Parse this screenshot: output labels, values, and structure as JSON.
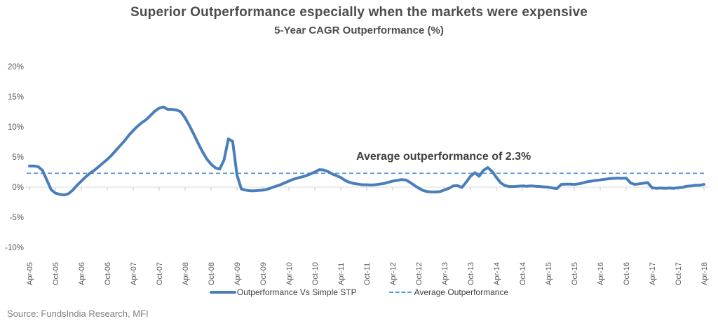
{
  "page": {
    "title": "Superior Outperformance especially when the markets were expensive",
    "subtitle": "5-Year CAGR Outperformance (%)",
    "annotation": "Average outperformance of 2.3%",
    "source": "Source: FundsIndia Research, MFI"
  },
  "legend": {
    "series_label": "Outperformance Vs Simple STP",
    "average_label": "Average Outperformance"
  },
  "colors": {
    "series_line": "#4a7ebb",
    "average_line": "#5b9bd5",
    "axis_text": "#595959",
    "title_text": "#4d4d4d",
    "annotation_text": "#3f3f3f",
    "source_text": "#7f7f7f",
    "gridline": "#d9d9d9",
    "tick": "#c9c9c9"
  },
  "chart_data": {
    "type": "line",
    "title": "Superior Outperformance especially when the markets were expensive",
    "subtitle": "5-Year CAGR Outperformance (%)",
    "xlabel": "",
    "ylabel": "",
    "ylim": [
      -10,
      20
    ],
    "grid": false,
    "legend_position": "bottom",
    "y_ticks": [
      "20%",
      "15%",
      "10%",
      "5%",
      "0%",
      "-5%",
      "-10%"
    ],
    "y_tick_values": [
      20,
      15,
      10,
      5,
      0,
      -5,
      -10
    ],
    "x_tick_labels": [
      "Apr-05",
      "Oct-05",
      "Apr-06",
      "Oct-06",
      "Apr-07",
      "Oct-07",
      "Apr-08",
      "Oct-08",
      "Apr-09",
      "Oct-09",
      "Apr-10",
      "Oct-10",
      "Apr-11",
      "Oct-11",
      "Apr-12",
      "Oct-12",
      "Apr-13",
      "Oct-13",
      "Apr-14",
      "Oct-14",
      "Apr-15",
      "Oct-15",
      "Apr-16",
      "Oct-16",
      "Apr-17",
      "Oct-17",
      "Apr-18"
    ],
    "average_value": 2.3,
    "annotation": "Average outperformance of 2.3%",
    "series": [
      {
        "name": "Outperformance Vs Simple STP",
        "start": "Apr-05",
        "interval": "monthly",
        "unit": "%",
        "values": [
          3.5,
          3.5,
          3.4,
          2.8,
          1.2,
          -0.4,
          -1.0,
          -1.2,
          -1.3,
          -1.1,
          -0.5,
          0.3,
          1.0,
          1.7,
          2.3,
          2.8,
          3.4,
          4.0,
          4.6,
          5.3,
          6.1,
          6.9,
          7.7,
          8.6,
          9.4,
          10.1,
          10.7,
          11.2,
          11.9,
          12.6,
          13.1,
          13.3,
          12.9,
          12.9,
          12.8,
          12.5,
          11.5,
          10.2,
          8.8,
          7.3,
          5.9,
          4.7,
          3.8,
          3.2,
          3.0,
          4.5,
          8.0,
          7.6,
          2.0,
          -0.3,
          -0.5,
          -0.6,
          -0.6,
          -0.55,
          -0.5,
          -0.35,
          -0.1,
          0.15,
          0.4,
          0.7,
          1.0,
          1.3,
          1.5,
          1.7,
          1.9,
          2.2,
          2.5,
          2.9,
          2.85,
          2.6,
          2.2,
          1.9,
          1.6,
          1.1,
          0.8,
          0.6,
          0.5,
          0.4,
          0.4,
          0.35,
          0.4,
          0.5,
          0.6,
          0.8,
          1.0,
          1.1,
          1.25,
          1.2,
          0.8,
          0.3,
          -0.15,
          -0.55,
          -0.75,
          -0.8,
          -0.8,
          -0.75,
          -0.45,
          -0.2,
          0.2,
          0.25,
          -0.05,
          0.8,
          1.8,
          2.4,
          1.8,
          2.8,
          3.25,
          2.6,
          1.6,
          0.7,
          0.25,
          0.1,
          0.1,
          0.15,
          0.2,
          0.15,
          0.2,
          0.15,
          0.1,
          0.05,
          0.0,
          -0.15,
          -0.25,
          0.45,
          0.5,
          0.5,
          0.45,
          0.55,
          0.7,
          0.9,
          1.0,
          1.1,
          1.2,
          1.3,
          1.4,
          1.45,
          1.5,
          1.45,
          1.5,
          0.7,
          0.45,
          0.55,
          0.65,
          0.75,
          -0.1,
          -0.2,
          -0.15,
          -0.2,
          -0.15,
          -0.2,
          -0.1,
          -0.05,
          0.15,
          0.2,
          0.3,
          0.3,
          0.45
        ]
      }
    ]
  }
}
